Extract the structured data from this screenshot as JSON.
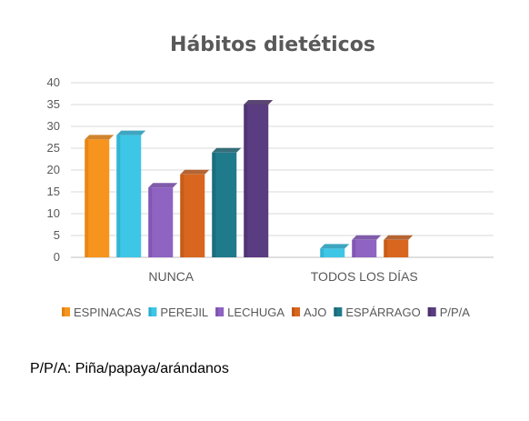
{
  "chart_data": {
    "type": "bar",
    "title": "Hábitos dietéticos",
    "categories": [
      "NUNCA",
      "TODOS LOS DÍAS"
    ],
    "ylim": [
      0,
      40
    ],
    "yticks": [
      "0",
      "5",
      "10",
      "15",
      "20",
      "25",
      "30",
      "35",
      "40"
    ],
    "grid": true,
    "legend_position": "bottom",
    "series": [
      {
        "name": "ESPINACAS",
        "values": [
          27,
          0
        ],
        "color": "#F7941D",
        "dark": "#C96F0A"
      },
      {
        "name": "PEREJIL",
        "values": [
          28,
          2
        ],
        "color": "#3EC6E6",
        "dark": "#1C96B5"
      },
      {
        "name": "LECHUGA",
        "values": [
          16,
          4
        ],
        "color": "#8E63C2",
        "dark": "#6A3F9C"
      },
      {
        "name": "AJO",
        "values": [
          19,
          4
        ],
        "color": "#D9661E",
        "dark": "#A8490F"
      },
      {
        "name": "ESPÁRRAGO",
        "values": [
          24,
          0
        ],
        "color": "#1F7A8C",
        "dark": "#135663"
      },
      {
        "name": "P/P/A",
        "values": [
          35,
          0
        ],
        "color": "#5A3C80",
        "dark": "#3D2659"
      }
    ]
  },
  "footnote": "P/P/A: Piña/papaya/arándanos"
}
